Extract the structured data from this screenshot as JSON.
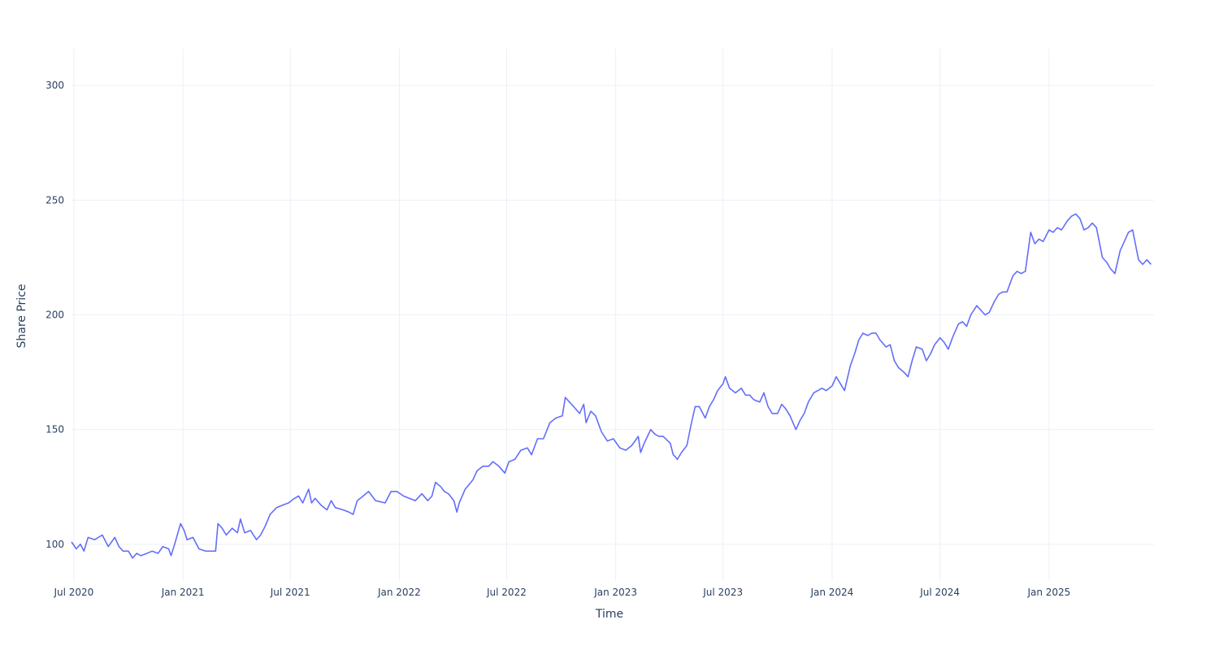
{
  "chart_data": {
    "type": "line",
    "title": "",
    "xlabel": "Time",
    "ylabel": "Share Price",
    "x_range": [
      "2020-06-27",
      "2025-06-27"
    ],
    "ylim": [
      84,
      316
    ],
    "grid": true,
    "legend": "none",
    "x_ticks": [
      {
        "date": "2020-07-01",
        "label": "Jul 2020"
      },
      {
        "date": "2021-01-01",
        "label": "Jan 2021"
      },
      {
        "date": "2021-07-01",
        "label": "Jul 2021"
      },
      {
        "date": "2022-01-01",
        "label": "Jan 2022"
      },
      {
        "date": "2022-07-01",
        "label": "Jul 2022"
      },
      {
        "date": "2023-01-01",
        "label": "Jan 2023"
      },
      {
        "date": "2023-07-01",
        "label": "Jul 2023"
      },
      {
        "date": "2024-01-01",
        "label": "Jan 2024"
      },
      {
        "date": "2024-07-01",
        "label": "Jul 2024"
      },
      {
        "date": "2025-01-01",
        "label": "Jan 2025"
      }
    ],
    "y_ticks": [
      100,
      150,
      200,
      250,
      300
    ],
    "series": [
      {
        "color": "#636efa",
        "points": [
          [
            "2020-06-27",
            101
          ],
          [
            "2020-07-05",
            98
          ],
          [
            "2020-07-12",
            100
          ],
          [
            "2020-07-18",
            97
          ],
          [
            "2020-07-25",
            103
          ],
          [
            "2020-08-05",
            102
          ],
          [
            "2020-08-18",
            104
          ],
          [
            "2020-08-28",
            99
          ],
          [
            "2020-09-08",
            103
          ],
          [
            "2020-09-15",
            99
          ],
          [
            "2020-09-22",
            97
          ],
          [
            "2020-10-01",
            97
          ],
          [
            "2020-10-08",
            94
          ],
          [
            "2020-10-15",
            96
          ],
          [
            "2020-10-22",
            95
          ],
          [
            "2020-11-01",
            96
          ],
          [
            "2020-11-10",
            97
          ],
          [
            "2020-11-20",
            96
          ],
          [
            "2020-11-28",
            99
          ],
          [
            "2020-12-08",
            98
          ],
          [
            "2020-12-12",
            95
          ],
          [
            "2020-12-18",
            100
          ],
          [
            "2020-12-28",
            109
          ],
          [
            "2021-01-03",
            106
          ],
          [
            "2021-01-08",
            102
          ],
          [
            "2021-01-18",
            103
          ],
          [
            "2021-01-28",
            98
          ],
          [
            "2021-02-08",
            97
          ],
          [
            "2021-02-18",
            97
          ],
          [
            "2021-02-25",
            97
          ],
          [
            "2021-03-01",
            109
          ],
          [
            "2021-03-08",
            107
          ],
          [
            "2021-03-15",
            104
          ],
          [
            "2021-03-25",
            107
          ],
          [
            "2021-04-03",
            105
          ],
          [
            "2021-04-08",
            111
          ],
          [
            "2021-04-15",
            105
          ],
          [
            "2021-04-25",
            106
          ],
          [
            "2021-05-05",
            102
          ],
          [
            "2021-05-12",
            104
          ],
          [
            "2021-05-20",
            108
          ],
          [
            "2021-05-28",
            113
          ],
          [
            "2021-06-08",
            116
          ],
          [
            "2021-06-18",
            117
          ],
          [
            "2021-06-28",
            118
          ],
          [
            "2021-07-08",
            120
          ],
          [
            "2021-07-15",
            121
          ],
          [
            "2021-07-22",
            118
          ],
          [
            "2021-08-01",
            124
          ],
          [
            "2021-08-06",
            118
          ],
          [
            "2021-08-12",
            120
          ],
          [
            "2021-08-22",
            117
          ],
          [
            "2021-09-01",
            115
          ],
          [
            "2021-09-08",
            119
          ],
          [
            "2021-09-15",
            116
          ],
          [
            "2021-09-28",
            115
          ],
          [
            "2021-10-08",
            114
          ],
          [
            "2021-10-15",
            113
          ],
          [
            "2021-10-22",
            119
          ],
          [
            "2021-11-01",
            121
          ],
          [
            "2021-11-10",
            123
          ],
          [
            "2021-11-22",
            119
          ],
          [
            "2021-12-08",
            118
          ],
          [
            "2021-12-18",
            123
          ],
          [
            "2021-12-28",
            123
          ],
          [
            "2022-01-08",
            121
          ],
          [
            "2022-01-18",
            120
          ],
          [
            "2022-01-28",
            119
          ],
          [
            "2022-02-08",
            122
          ],
          [
            "2022-02-18",
            119
          ],
          [
            "2022-02-25",
            121
          ],
          [
            "2022-03-03",
            127
          ],
          [
            "2022-03-12",
            125
          ],
          [
            "2022-03-18",
            123
          ],
          [
            "2022-03-25",
            122
          ],
          [
            "2022-04-03",
            119
          ],
          [
            "2022-04-08",
            114
          ],
          [
            "2022-04-12",
            118
          ],
          [
            "2022-04-22",
            124
          ],
          [
            "2022-05-05",
            128
          ],
          [
            "2022-05-12",
            132
          ],
          [
            "2022-05-22",
            134
          ],
          [
            "2022-06-01",
            134
          ],
          [
            "2022-06-08",
            136
          ],
          [
            "2022-06-18",
            134
          ],
          [
            "2022-06-28",
            131
          ],
          [
            "2022-07-05",
            136
          ],
          [
            "2022-07-15",
            137
          ],
          [
            "2022-07-25",
            141
          ],
          [
            "2022-08-05",
            142
          ],
          [
            "2022-08-12",
            139
          ],
          [
            "2022-08-22",
            146
          ],
          [
            "2022-09-01",
            146
          ],
          [
            "2022-09-12",
            153
          ],
          [
            "2022-09-22",
            155
          ],
          [
            "2022-10-03",
            156
          ],
          [
            "2022-10-08",
            164
          ],
          [
            "2022-10-15",
            162
          ],
          [
            "2022-10-22",
            160
          ],
          [
            "2022-11-01",
            157
          ],
          [
            "2022-11-08",
            161
          ],
          [
            "2022-11-12",
            153
          ],
          [
            "2022-11-20",
            158
          ],
          [
            "2022-11-28",
            156
          ],
          [
            "2022-12-08",
            149
          ],
          [
            "2022-12-18",
            145
          ],
          [
            "2022-12-28",
            146
          ],
          [
            "2023-01-08",
            142
          ],
          [
            "2023-01-18",
            141
          ],
          [
            "2023-01-28",
            143
          ],
          [
            "2023-02-08",
            147
          ],
          [
            "2023-02-12",
            140
          ],
          [
            "2023-02-18",
            144
          ],
          [
            "2023-03-01",
            150
          ],
          [
            "2023-03-08",
            148
          ],
          [
            "2023-03-15",
            147
          ],
          [
            "2023-03-22",
            147
          ],
          [
            "2023-04-03",
            144
          ],
          [
            "2023-04-08",
            139
          ],
          [
            "2023-04-12",
            138
          ],
          [
            "2023-04-15",
            137
          ],
          [
            "2023-04-22",
            140
          ],
          [
            "2023-05-01",
            143
          ],
          [
            "2023-05-08",
            152
          ],
          [
            "2023-05-15",
            160
          ],
          [
            "2023-05-22",
            160
          ],
          [
            "2023-06-01",
            155
          ],
          [
            "2023-06-08",
            160
          ],
          [
            "2023-06-15",
            163
          ],
          [
            "2023-06-22",
            167
          ],
          [
            "2023-07-01",
            170
          ],
          [
            "2023-07-05",
            173
          ],
          [
            "2023-07-12",
            168
          ],
          [
            "2023-07-22",
            166
          ],
          [
            "2023-08-01",
            168
          ],
          [
            "2023-08-08",
            165
          ],
          [
            "2023-08-15",
            165
          ],
          [
            "2023-08-22",
            163
          ],
          [
            "2023-09-01",
            162
          ],
          [
            "2023-09-08",
            166
          ],
          [
            "2023-09-15",
            160
          ],
          [
            "2023-09-22",
            157
          ],
          [
            "2023-10-01",
            157
          ],
          [
            "2023-10-08",
            161
          ],
          [
            "2023-10-15",
            159
          ],
          [
            "2023-10-22",
            156
          ],
          [
            "2023-11-01",
            150
          ],
          [
            "2023-11-08",
            154
          ],
          [
            "2023-11-15",
            157
          ],
          [
            "2023-11-22",
            162
          ],
          [
            "2023-12-01",
            166
          ],
          [
            "2023-12-08",
            167
          ],
          [
            "2023-12-15",
            168
          ],
          [
            "2023-12-22",
            167
          ],
          [
            "2024-01-01",
            169
          ],
          [
            "2024-01-08",
            173
          ],
          [
            "2024-01-15",
            170
          ],
          [
            "2024-01-22",
            167
          ],
          [
            "2024-02-01",
            178
          ],
          [
            "2024-02-08",
            183
          ],
          [
            "2024-02-15",
            189
          ],
          [
            "2024-02-22",
            192
          ],
          [
            "2024-03-01",
            191
          ],
          [
            "2024-03-08",
            192
          ],
          [
            "2024-03-15",
            192
          ],
          [
            "2024-03-22",
            189
          ],
          [
            "2024-04-01",
            186
          ],
          [
            "2024-04-08",
            187
          ],
          [
            "2024-04-15",
            180
          ],
          [
            "2024-04-22",
            177
          ],
          [
            "2024-05-01",
            175
          ],
          [
            "2024-05-08",
            173
          ],
          [
            "2024-05-15",
            180
          ],
          [
            "2024-05-22",
            186
          ],
          [
            "2024-06-01",
            185
          ],
          [
            "2024-06-08",
            180
          ],
          [
            "2024-06-15",
            183
          ],
          [
            "2024-06-22",
            187
          ],
          [
            "2024-07-01",
            190
          ],
          [
            "2024-07-08",
            188
          ],
          [
            "2024-07-15",
            185
          ],
          [
            "2024-07-22",
            190
          ],
          [
            "2024-08-01",
            196
          ],
          [
            "2024-08-08",
            197
          ],
          [
            "2024-08-15",
            195
          ],
          [
            "2024-08-22",
            200
          ],
          [
            "2024-09-01",
            204
          ],
          [
            "2024-09-08",
            202
          ],
          [
            "2024-09-15",
            200
          ],
          [
            "2024-09-22",
            201
          ],
          [
            "2024-10-01",
            206
          ],
          [
            "2024-10-08",
            209
          ],
          [
            "2024-10-15",
            210
          ],
          [
            "2024-10-22",
            210
          ],
          [
            "2024-11-01",
            217
          ],
          [
            "2024-11-08",
            219
          ],
          [
            "2024-11-15",
            218
          ],
          [
            "2024-11-22",
            219
          ],
          [
            "2024-12-01",
            236
          ],
          [
            "2024-12-08",
            231
          ],
          [
            "2024-12-15",
            233
          ],
          [
            "2024-12-22",
            232
          ],
          [
            "2025-01-01",
            237
          ],
          [
            "2025-01-08",
            236
          ],
          [
            "2025-01-15",
            238
          ],
          [
            "2025-01-22",
            237
          ],
          [
            "2025-02-01",
            241
          ],
          [
            "2025-02-08",
            243
          ],
          [
            "2025-02-15",
            244
          ],
          [
            "2025-02-22",
            242
          ],
          [
            "2025-03-01",
            237
          ],
          [
            "2025-03-08",
            238
          ],
          [
            "2025-03-15",
            240
          ],
          [
            "2025-03-22",
            238
          ],
          [
            "2025-04-01",
            225
          ],
          [
            "2025-04-08",
            223
          ],
          [
            "2025-04-15",
            220
          ],
          [
            "2025-04-22",
            218
          ],
          [
            "2025-05-01",
            228
          ],
          [
            "2025-05-08",
            232
          ],
          [
            "2025-05-15",
            236
          ],
          [
            "2025-05-22",
            237
          ],
          [
            "2025-06-01",
            224
          ],
          [
            "2025-06-08",
            222
          ],
          [
            "2025-06-15",
            224
          ],
          [
            "2025-06-22",
            222
          ]
        ]
      }
    ]
  }
}
